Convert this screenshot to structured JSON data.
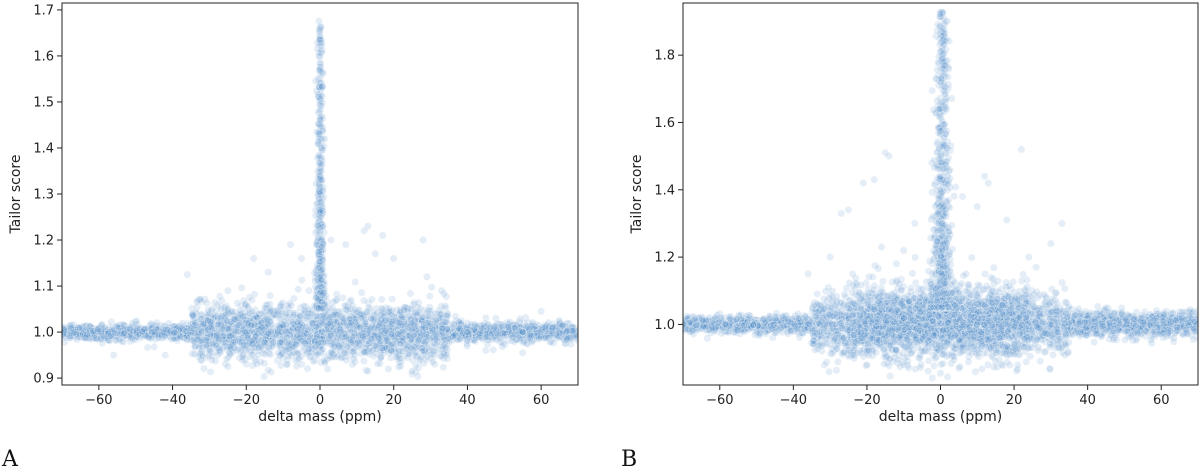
{
  "figure": {
    "colors": {
      "point": "#4f8fc9",
      "axis": "#222222"
    }
  },
  "chart_data": [
    {
      "type": "scatter",
      "panel_label": "A",
      "title": "",
      "xlabel": "delta mass (ppm)",
      "ylabel": "Tailor score",
      "xlim": [
        -70,
        70
      ],
      "ylim": [
        0.885,
        1.715
      ],
      "x_ticks": [
        -60,
        -40,
        -20,
        0,
        20,
        40,
        60
      ],
      "y_ticks": [
        0.9,
        1.0,
        1.1,
        1.2,
        1.3,
        1.4,
        1.5,
        1.6,
        1.7
      ],
      "y_tick_labels": [
        "0.9",
        "1.0",
        "1.1",
        "1.2",
        "1.3",
        "1.4",
        "1.5",
        "1.6",
        "1.7"
      ],
      "grid": false,
      "legend": "none",
      "point_alpha": 0.15,
      "density": [
        {
          "x_range": [
            -70,
            -35
          ],
          "y_center": 1.0,
          "y_spread": 0.008,
          "count": 700
        },
        {
          "x_range": [
            35,
            70
          ],
          "y_center": 1.0,
          "y_spread": 0.01,
          "count": 700
        },
        {
          "x_range": [
            -35,
            35
          ],
          "y_center": 1.0,
          "y_spread": 0.03,
          "count": 2200
        }
      ],
      "spike": {
        "x_center": 0,
        "x_spread": 0.6,
        "y_range": [
          1.05,
          1.68
        ],
        "count": 450
      },
      "outliers": [
        [
          -36,
          1.125
        ],
        [
          -25,
          1.09
        ],
        [
          -18,
          1.16
        ],
        [
          -14,
          1.13
        ],
        [
          -8,
          1.19
        ],
        [
          -5,
          1.16
        ],
        [
          -3,
          1.09
        ],
        [
          3,
          1.2
        ],
        [
          7,
          1.19
        ],
        [
          12,
          1.22
        ],
        [
          13,
          1.23
        ],
        [
          15,
          1.17
        ],
        [
          17,
          1.21
        ],
        [
          20,
          1.16
        ],
        [
          28,
          1.2
        ],
        [
          29,
          1.12
        ],
        [
          33,
          1.09
        ],
        [
          -56,
          0.95
        ],
        [
          -42,
          0.95
        ],
        [
          25,
          0.915
        ],
        [
          -25,
          0.925
        ],
        [
          13,
          0.915
        ],
        [
          -9,
          0.93
        ],
        [
          45,
          0.96
        ],
        [
          55,
          0.955
        ],
        [
          60,
          1.045
        ]
      ]
    },
    {
      "type": "scatter",
      "panel_label": "B",
      "title": "",
      "xlabel": "delta mass (ppm)",
      "ylabel": "Tailor score",
      "xlim": [
        -70,
        70
      ],
      "ylim": [
        0.82,
        1.955
      ],
      "x_ticks": [
        -60,
        -40,
        -20,
        0,
        20,
        40,
        60
      ],
      "y_ticks": [
        1.0,
        1.2,
        1.4,
        1.6,
        1.8
      ],
      "y_tick_labels": [
        "1.0",
        "1.2",
        "1.4",
        "1.6",
        "1.8"
      ],
      "grid": false,
      "legend": "none",
      "point_alpha": 0.15,
      "density": [
        {
          "x_range": [
            -70,
            -35
          ],
          "y_center": 1.0,
          "y_spread": 0.012,
          "count": 700
        },
        {
          "x_range": [
            35,
            70
          ],
          "y_center": 1.0,
          "y_spread": 0.018,
          "count": 900
        },
        {
          "x_range": [
            -35,
            35
          ],
          "y_center": 1.0,
          "y_spread": 0.045,
          "count": 2000
        },
        {
          "x_range": [
            -24,
            24
          ],
          "y_center": 1.01,
          "y_spread": 0.05,
          "count": 1400
        }
      ],
      "spike": {
        "x_center": 0.5,
        "x_spread": 1.4,
        "y_range": [
          1.05,
          1.93
        ],
        "count": 700
      },
      "outliers": [
        [
          -27,
          1.33
        ],
        [
          -25,
          1.34
        ],
        [
          -21,
          1.42
        ],
        [
          -18,
          1.43
        ],
        [
          -15,
          1.51
        ],
        [
          -14,
          1.5
        ],
        [
          -16,
          1.23
        ],
        [
          -12,
          1.18
        ],
        [
          -10,
          1.22
        ],
        [
          -7,
          1.3
        ],
        [
          6,
          1.38
        ],
        [
          10,
          1.35
        ],
        [
          12,
          1.44
        ],
        [
          13,
          1.42
        ],
        [
          18,
          1.31
        ],
        [
          22,
          1.52
        ],
        [
          24,
          1.2
        ],
        [
          26,
          1.17
        ],
        [
          33,
          1.3
        ],
        [
          30,
          1.24
        ],
        [
          -20,
          0.88
        ],
        [
          0,
          0.855
        ],
        [
          5,
          0.87
        ],
        [
          15,
          0.89
        ],
        [
          21,
          0.88
        ],
        [
          -36,
          1.15
        ],
        [
          -30,
          1.2
        ]
      ]
    }
  ]
}
